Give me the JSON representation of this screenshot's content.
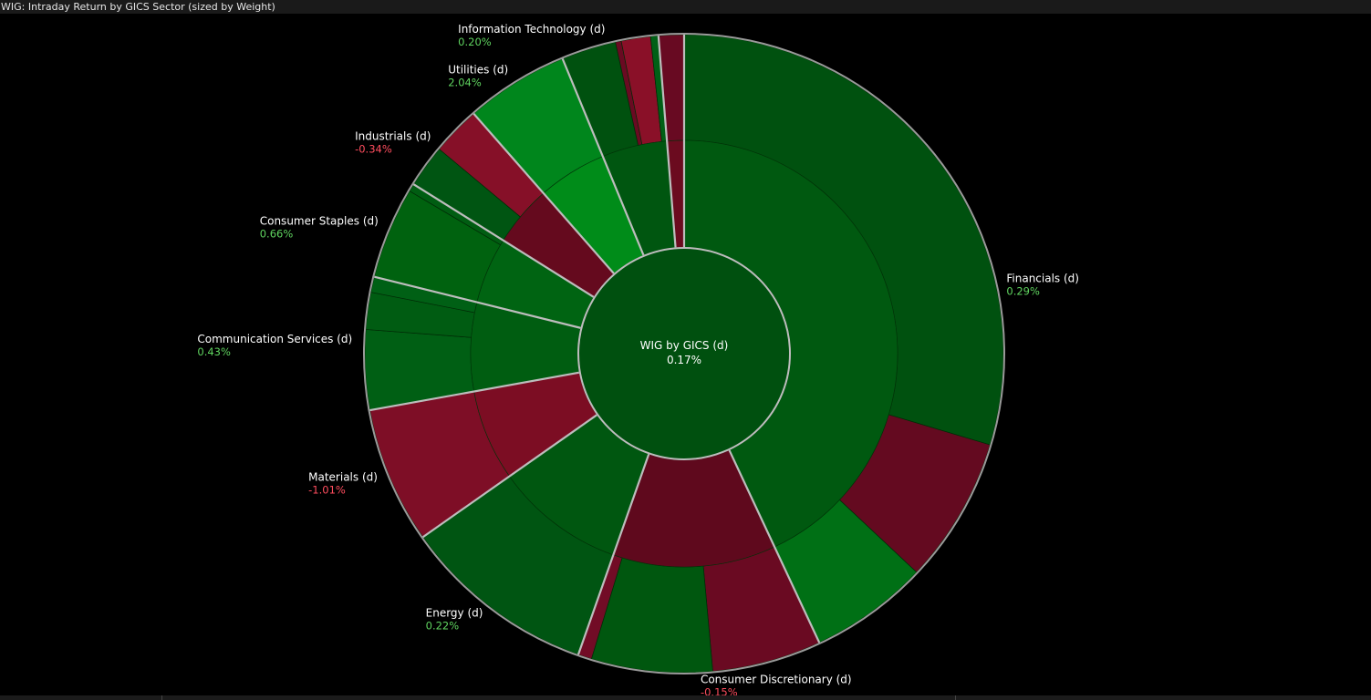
{
  "window": {
    "title": "WIG: Intraday Return by GICS Sector (sized by Weight)"
  },
  "colors": {
    "positive_text": "#5fd35f",
    "negative_text": "#ff4d5e",
    "separator": "#bdbdbd"
  },
  "chart_data": {
    "type": "sunburst",
    "title": "WIG: Intraday Return by GICS Sector (sized by Weight)",
    "center": {
      "label": "WIG by GICS (d)",
      "value": "0.17%"
    },
    "sectors": [
      {
        "name": "Financials (d)",
        "value": "0.29%",
        "return_pct": 0.29,
        "weight_pct": 43.6,
        "children": [
          {
            "weight_pct": 30.0,
            "color": "#00510f"
          },
          {
            "weight_pct": 7.5,
            "color": "#640a20"
          },
          {
            "weight_pct": 6.1,
            "color": "#007015"
          }
        ]
      },
      {
        "name": "Consumer Discretionary (d)",
        "value": "-0.15%",
        "return_pct": -0.15,
        "weight_pct": 12.5,
        "children": [
          {
            "weight_pct": 5.6,
            "color": "#6a0a22"
          },
          {
            "weight_pct": 6.2,
            "color": "#00570f"
          },
          {
            "weight_pct": 0.7,
            "color": "#720c26"
          }
        ]
      },
      {
        "name": "Energy (d)",
        "value": "0.22%",
        "return_pct": 0.22,
        "weight_pct": 10.0,
        "children": [
          {
            "weight_pct": 10.0,
            "color": "#005512"
          }
        ]
      },
      {
        "name": "Materials (d)",
        "value": "-1.01%",
        "return_pct": -1.01,
        "weight_pct": 7.0,
        "children": [
          {
            "weight_pct": 7.0,
            "color": "#7e0e26"
          }
        ]
      },
      {
        "name": "Communication Services (d)",
        "value": "0.43%",
        "return_pct": 0.43,
        "weight_pct": 6.8,
        "children": [
          {
            "weight_pct": 4.1,
            "color": "#005f14"
          },
          {
            "weight_pct": 1.9,
            "color": "#005c12"
          },
          {
            "weight_pct": 0.8,
            "color": "#006015"
          }
        ]
      },
      {
        "name": "Consumer Staples (d)",
        "value": "0.66%",
        "return_pct": 0.66,
        "weight_pct": 5.1,
        "children": [
          {
            "weight_pct": 4.7,
            "color": "#00620f"
          },
          {
            "weight_pct": 0.4,
            "color": "#005d12"
          }
        ]
      },
      {
        "name": "Industrials (d)",
        "value": "-0.34%",
        "return_pct": -0.34,
        "weight_pct": 4.7,
        "children": [
          {
            "weight_pct": 2.2,
            "color": "#005512"
          },
          {
            "weight_pct": 2.5,
            "color": "#861028"
          }
        ]
      },
      {
        "name": "Utilities (d)",
        "value": "2.04%",
        "return_pct": 2.04,
        "weight_pct": 5.3,
        "children": [
          {
            "weight_pct": 5.3,
            "color": "#00861c"
          }
        ]
      },
      {
        "name": "Information Technology (d)",
        "value": "0.20%",
        "return_pct": 0.2,
        "weight_pct": 5.0,
        "children": [
          {
            "weight_pct": 2.8,
            "color": "#00510f"
          },
          {
            "weight_pct": 0.3,
            "color": "#6a0a22"
          },
          {
            "weight_pct": 1.5,
            "color": "#8a1028"
          },
          {
            "weight_pct": 0.4,
            "color": "#006016"
          }
        ]
      },
      {
        "name": "",
        "value": "",
        "return_pct": -0.5,
        "weight_pct": 1.3,
        "children": [
          {
            "weight_pct": 1.3,
            "color": "#680a22"
          }
        ]
      }
    ]
  }
}
